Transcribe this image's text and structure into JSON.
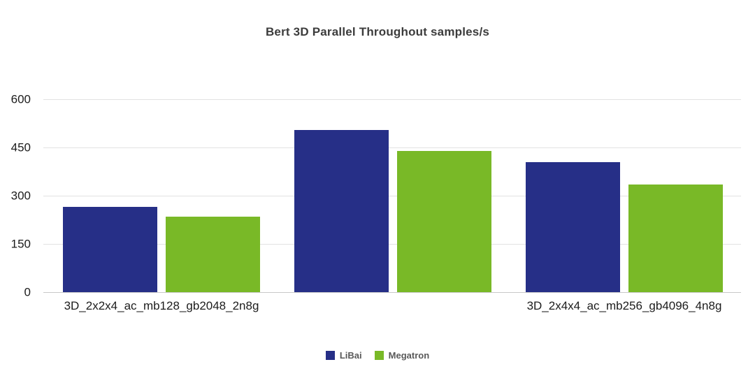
{
  "chart_data": {
    "type": "bar",
    "title": "Bert 3D Parallel Throughout samples/s",
    "categories": [
      "3D_2x2x4_ac_mb128_gb2048_2n8g",
      "",
      "3D_2x4x4_ac_mb256_gb4096_4n8g"
    ],
    "series": [
      {
        "name": "LiBai",
        "color": "#262f87",
        "values": [
          265,
          505,
          405
        ]
      },
      {
        "name": "Megatron",
        "color": "#79b927",
        "values": [
          235,
          440,
          335
        ]
      }
    ],
    "xlabel": "",
    "ylabel": "",
    "ylim": [
      0,
      600
    ],
    "yticks": [
      0,
      150,
      300,
      450,
      600
    ],
    "grid": true,
    "legend_position": "bottom"
  }
}
